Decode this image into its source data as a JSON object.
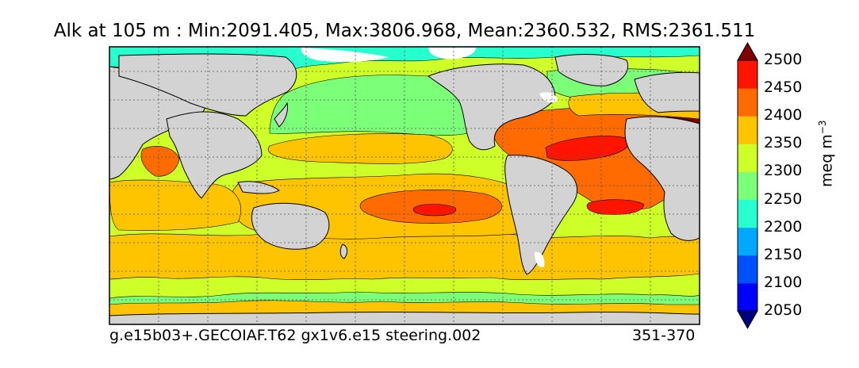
{
  "title": "Alk at 105 m : Min:2091.405, Max:3806.968, Mean:2360.532, RMS:2361.511",
  "footer": {
    "run_name": "g.e15b03+.GECOIAF.T62 gx1v6.e15 steering.002",
    "years": "351-370"
  },
  "colorbar": {
    "units": "meq m",
    "units_exponent": "−3",
    "levels": [
      2050,
      2100,
      2150,
      2200,
      2250,
      2300,
      2350,
      2400,
      2450,
      2500
    ],
    "tick_labels": [
      "2050",
      "2100",
      "2150",
      "2200",
      "2250",
      "2300",
      "2350",
      "2400",
      "2450",
      "2500"
    ],
    "colors": [
      "#00007f",
      "#0000ff",
      "#0050ff",
      "#00a8ff",
      "#28ffce",
      "#7cff79",
      "#ceff29",
      "#ffc400",
      "#ff6b00",
      "#ff1400",
      "#7f0000"
    ]
  },
  "map_colors": {
    "land": "#d3d3d3",
    "no_data": "#ffffff"
  }
}
